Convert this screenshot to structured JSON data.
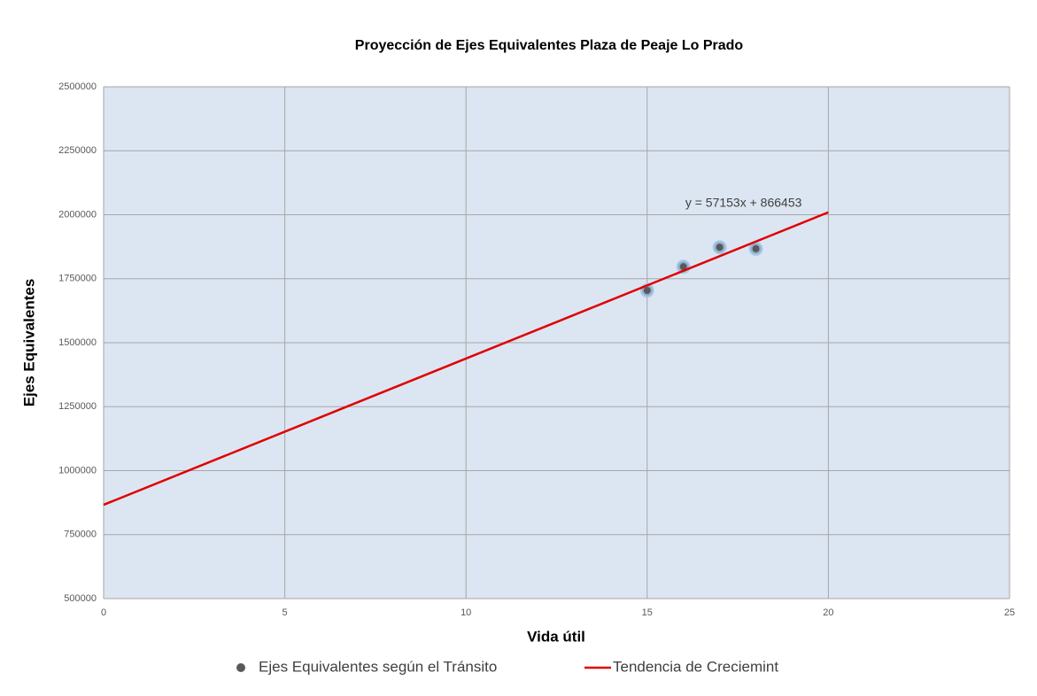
{
  "chart_data": {
    "type": "scatter",
    "title": "Proyección de Ejes Equivalentes Plaza de Peaje Lo Prado",
    "x_label": "Vida útil",
    "y_label": "Ejes Equivalentes",
    "annotation": "y = 57153x + 866453",
    "xlim": [
      0,
      25
    ],
    "xticks": [
      0,
      5,
      10,
      15,
      20,
      25
    ],
    "ylim": [
      500000,
      2500000
    ],
    "yticks": [
      500000,
      750000,
      1000000,
      1250000,
      1500000,
      1750000,
      2000000,
      2250000,
      2500000
    ],
    "grid": true,
    "legend": "bottom",
    "series": [
      {
        "name": "Ejes Equivalentes según el Tránsito",
        "type": "scatter",
        "color": "#595959",
        "x": [
          15,
          16,
          17,
          18
        ],
        "values": [
          1704000,
          1797000,
          1873000,
          1867000
        ]
      },
      {
        "name": "Tendencia de Creciemint",
        "type": "line",
        "color": "#e00000",
        "x": [
          0,
          20
        ],
        "values": [
          866453,
          2009513
        ]
      }
    ]
  }
}
